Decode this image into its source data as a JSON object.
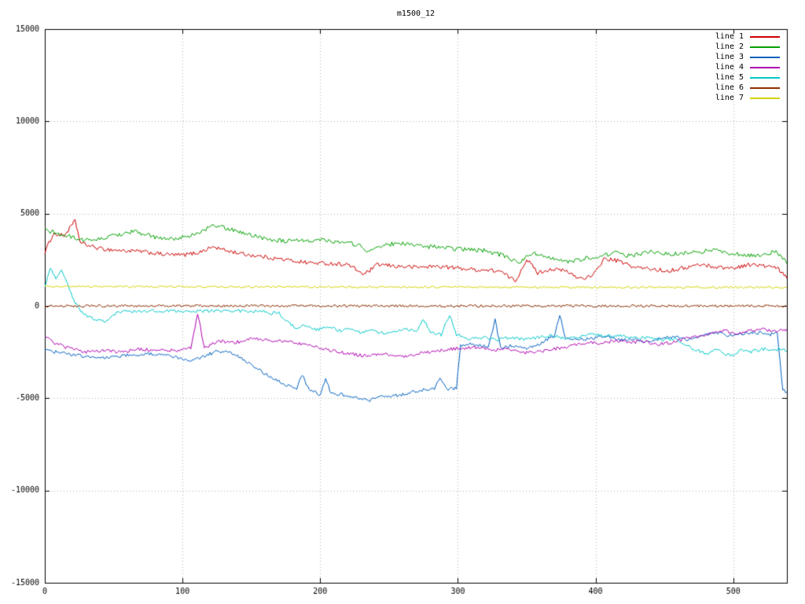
{
  "chart_data": {
    "type": "line",
    "title": "m1500_12",
    "xlabel": "",
    "ylabel": "",
    "xlim": [
      0,
      539
    ],
    "ylim": [
      -15000,
      15000
    ],
    "xticks": [
      0,
      100,
      200,
      300,
      400,
      500
    ],
    "yticks": [
      -15000,
      -10000,
      -5000,
      0,
      5000,
      10000,
      15000
    ],
    "grid": true,
    "grid_color": "#b0b0b0",
    "axis_color": "#000000",
    "background": "#ffffff",
    "legend_position": "top-right",
    "series": [
      {
        "name": "line 1",
        "color": "#cc0000",
        "noise": 110,
        "anchors": [
          [
            0,
            2900
          ],
          [
            6,
            3900
          ],
          [
            14,
            3800
          ],
          [
            22,
            4600
          ],
          [
            26,
            3400
          ],
          [
            40,
            3100
          ],
          [
            55,
            3000
          ],
          [
            70,
            2950
          ],
          [
            85,
            2800
          ],
          [
            100,
            2750
          ],
          [
            112,
            2900
          ],
          [
            122,
            3200
          ],
          [
            132,
            3000
          ],
          [
            145,
            2800
          ],
          [
            160,
            2650
          ],
          [
            175,
            2500
          ],
          [
            190,
            2350
          ],
          [
            205,
            2300
          ],
          [
            220,
            2250
          ],
          [
            232,
            1700
          ],
          [
            242,
            2250
          ],
          [
            255,
            2150
          ],
          [
            270,
            2100
          ],
          [
            285,
            2150
          ],
          [
            300,
            2050
          ],
          [
            315,
            1950
          ],
          [
            330,
            1900
          ],
          [
            342,
            1350
          ],
          [
            350,
            2550
          ],
          [
            358,
            1800
          ],
          [
            368,
            2000
          ],
          [
            378,
            1900
          ],
          [
            388,
            1500
          ],
          [
            398,
            1600
          ],
          [
            406,
            2550
          ],
          [
            416,
            2450
          ],
          [
            428,
            2100
          ],
          [
            440,
            2000
          ],
          [
            452,
            1900
          ],
          [
            464,
            2050
          ],
          [
            476,
            2250
          ],
          [
            488,
            2100
          ],
          [
            500,
            2050
          ],
          [
            512,
            2250
          ],
          [
            524,
            2150
          ],
          [
            532,
            2050
          ],
          [
            539,
            1500
          ]
        ]
      },
      {
        "name": "line 2",
        "color": "#00a000",
        "noise": 120,
        "anchors": [
          [
            0,
            4100
          ],
          [
            8,
            3950
          ],
          [
            18,
            3750
          ],
          [
            30,
            3550
          ],
          [
            42,
            3650
          ],
          [
            55,
            3900
          ],
          [
            65,
            4050
          ],
          [
            78,
            3750
          ],
          [
            90,
            3600
          ],
          [
            102,
            3750
          ],
          [
            112,
            3950
          ],
          [
            122,
            4350
          ],
          [
            130,
            4250
          ],
          [
            140,
            4050
          ],
          [
            152,
            3800
          ],
          [
            164,
            3600
          ],
          [
            176,
            3500
          ],
          [
            190,
            3550
          ],
          [
            202,
            3600
          ],
          [
            214,
            3450
          ],
          [
            226,
            3350
          ],
          [
            236,
            2950
          ],
          [
            246,
            3300
          ],
          [
            258,
            3400
          ],
          [
            270,
            3250
          ],
          [
            282,
            3200
          ],
          [
            295,
            3100
          ],
          [
            308,
            3050
          ],
          [
            320,
            3000
          ],
          [
            332,
            2750
          ],
          [
            344,
            2350
          ],
          [
            354,
            2850
          ],
          [
            366,
            2700
          ],
          [
            378,
            2350
          ],
          [
            390,
            2550
          ],
          [
            402,
            2650
          ],
          [
            414,
            2900
          ],
          [
            426,
            2700
          ],
          [
            438,
            2950
          ],
          [
            450,
            2800
          ],
          [
            462,
            2850
          ],
          [
            474,
            2900
          ],
          [
            486,
            3050
          ],
          [
            498,
            2850
          ],
          [
            510,
            2750
          ],
          [
            520,
            2700
          ],
          [
            530,
            2950
          ],
          [
            539,
            2350
          ]
        ]
      },
      {
        "name": "line 3",
        "color": "#0060c0",
        "noise": 90,
        "anchors": [
          [
            0,
            -2400
          ],
          [
            12,
            -2550
          ],
          [
            25,
            -2700
          ],
          [
            38,
            -2800
          ],
          [
            50,
            -2750
          ],
          [
            62,
            -2650
          ],
          [
            75,
            -2600
          ],
          [
            88,
            -2700
          ],
          [
            100,
            -2850
          ],
          [
            108,
            -2950
          ],
          [
            116,
            -2700
          ],
          [
            126,
            -2450
          ],
          [
            136,
            -2550
          ],
          [
            146,
            -3000
          ],
          [
            156,
            -3500
          ],
          [
            166,
            -3950
          ],
          [
            176,
            -4300
          ],
          [
            183,
            -4450
          ],
          [
            187,
            -3750
          ],
          [
            192,
            -4550
          ],
          [
            200,
            -4800
          ],
          [
            204,
            -3950
          ],
          [
            208,
            -4750
          ],
          [
            216,
            -4800
          ],
          [
            226,
            -5000
          ],
          [
            236,
            -5100
          ],
          [
            246,
            -4900
          ],
          [
            256,
            -4850
          ],
          [
            266,
            -4700
          ],
          [
            276,
            -4550
          ],
          [
            283,
            -4450
          ],
          [
            287,
            -3900
          ],
          [
            292,
            -4500
          ],
          [
            299,
            -4450
          ],
          [
            302,
            -2150
          ],
          [
            312,
            -2050
          ],
          [
            322,
            -2250
          ],
          [
            327,
            -750
          ],
          [
            331,
            -2250
          ],
          [
            340,
            -2150
          ],
          [
            350,
            -2300
          ],
          [
            360,
            -2050
          ],
          [
            370,
            -1600
          ],
          [
            374,
            -450
          ],
          [
            378,
            -1700
          ],
          [
            388,
            -1850
          ],
          [
            398,
            -1750
          ],
          [
            408,
            -1650
          ],
          [
            418,
            -1850
          ],
          [
            428,
            -1800
          ],
          [
            438,
            -1950
          ],
          [
            448,
            -1750
          ],
          [
            458,
            -1650
          ],
          [
            468,
            -1850
          ],
          [
            478,
            -1550
          ],
          [
            488,
            -1450
          ],
          [
            498,
            -1600
          ],
          [
            508,
            -1500
          ],
          [
            518,
            -1450
          ],
          [
            526,
            -1550
          ],
          [
            532,
            -1500
          ],
          [
            536,
            -4550
          ],
          [
            539,
            -4700
          ]
        ]
      },
      {
        "name": "line 4",
        "color": "#b000b0",
        "noise": 90,
        "anchors": [
          [
            0,
            -1550
          ],
          [
            8,
            -2050
          ],
          [
            18,
            -2300
          ],
          [
            30,
            -2500
          ],
          [
            42,
            -2400
          ],
          [
            55,
            -2500
          ],
          [
            68,
            -2350
          ],
          [
            82,
            -2400
          ],
          [
            96,
            -2400
          ],
          [
            106,
            -2300
          ],
          [
            111,
            -400
          ],
          [
            116,
            -2300
          ],
          [
            126,
            -1900
          ],
          [
            138,
            -2000
          ],
          [
            150,
            -1750
          ],
          [
            162,
            -1850
          ],
          [
            176,
            -1950
          ],
          [
            190,
            -2100
          ],
          [
            204,
            -2350
          ],
          [
            218,
            -2550
          ],
          [
            232,
            -2700
          ],
          [
            246,
            -2600
          ],
          [
            260,
            -2750
          ],
          [
            274,
            -2550
          ],
          [
            288,
            -2400
          ],
          [
            300,
            -2300
          ],
          [
            312,
            -2250
          ],
          [
            324,
            -2400
          ],
          [
            336,
            -2300
          ],
          [
            348,
            -2550
          ],
          [
            360,
            -2450
          ],
          [
            372,
            -2300
          ],
          [
            384,
            -2150
          ],
          [
            394,
            -1950
          ],
          [
            404,
            -2050
          ],
          [
            414,
            -1850
          ],
          [
            424,
            -2000
          ],
          [
            434,
            -1900
          ],
          [
            444,
            -2100
          ],
          [
            454,
            -2000
          ],
          [
            464,
            -1800
          ],
          [
            474,
            -1650
          ],
          [
            484,
            -1450
          ],
          [
            494,
            -1350
          ],
          [
            504,
            -1500
          ],
          [
            514,
            -1300
          ],
          [
            522,
            -1250
          ],
          [
            530,
            -1400
          ],
          [
            539,
            -1300
          ]
        ]
      },
      {
        "name": "line 5",
        "color": "#00c8c8",
        "noise": 90,
        "anchors": [
          [
            0,
            1100
          ],
          [
            4,
            2050
          ],
          [
            8,
            1550
          ],
          [
            12,
            1950
          ],
          [
            17,
            1100
          ],
          [
            22,
            200
          ],
          [
            28,
            -450
          ],
          [
            36,
            -700
          ],
          [
            45,
            -850
          ],
          [
            52,
            -400
          ],
          [
            58,
            -250
          ],
          [
            68,
            -300
          ],
          [
            78,
            -250
          ],
          [
            88,
            -300
          ],
          [
            98,
            -250
          ],
          [
            108,
            -300
          ],
          [
            118,
            -250
          ],
          [
            128,
            -300
          ],
          [
            138,
            -250
          ],
          [
            148,
            -300
          ],
          [
            156,
            -250
          ],
          [
            164,
            -400
          ],
          [
            170,
            -350
          ],
          [
            175,
            -850
          ],
          [
            182,
            -1150
          ],
          [
            190,
            -1050
          ],
          [
            198,
            -1300
          ],
          [
            206,
            -1100
          ],
          [
            214,
            -1350
          ],
          [
            222,
            -1200
          ],
          [
            230,
            -1450
          ],
          [
            238,
            -1300
          ],
          [
            246,
            -1500
          ],
          [
            254,
            -1350
          ],
          [
            262,
            -1250
          ],
          [
            270,
            -1400
          ],
          [
            275,
            -700
          ],
          [
            280,
            -1450
          ],
          [
            288,
            -1550
          ],
          [
            294,
            -450
          ],
          [
            299,
            -1550
          ],
          [
            308,
            -1750
          ],
          [
            318,
            -1700
          ],
          [
            328,
            -1850
          ],
          [
            338,
            -1700
          ],
          [
            348,
            -1800
          ],
          [
            358,
            -1700
          ],
          [
            368,
            -1600
          ],
          [
            378,
            -1750
          ],
          [
            388,
            -1700
          ],
          [
            398,
            -1500
          ],
          [
            408,
            -1650
          ],
          [
            418,
            -1600
          ],
          [
            428,
            -1750
          ],
          [
            438,
            -1700
          ],
          [
            448,
            -1850
          ],
          [
            458,
            -1800
          ],
          [
            466,
            -2150
          ],
          [
            474,
            -2400
          ],
          [
            482,
            -2650
          ],
          [
            488,
            -2300
          ],
          [
            494,
            -2600
          ],
          [
            500,
            -2700
          ],
          [
            506,
            -2300
          ],
          [
            512,
            -2500
          ],
          [
            518,
            -2400
          ],
          [
            524,
            -2300
          ],
          [
            530,
            -2400
          ],
          [
            535,
            -2300
          ],
          [
            539,
            -2500
          ]
        ]
      },
      {
        "name": "line 6",
        "color": "#903000",
        "noise": 70,
        "anchors": [
          [
            0,
            0
          ],
          [
            539,
            0
          ]
        ]
      },
      {
        "name": "line 7",
        "color": "#d4d400",
        "noise": 55,
        "anchors": [
          [
            0,
            1050
          ],
          [
            539,
            1000
          ]
        ]
      }
    ]
  }
}
